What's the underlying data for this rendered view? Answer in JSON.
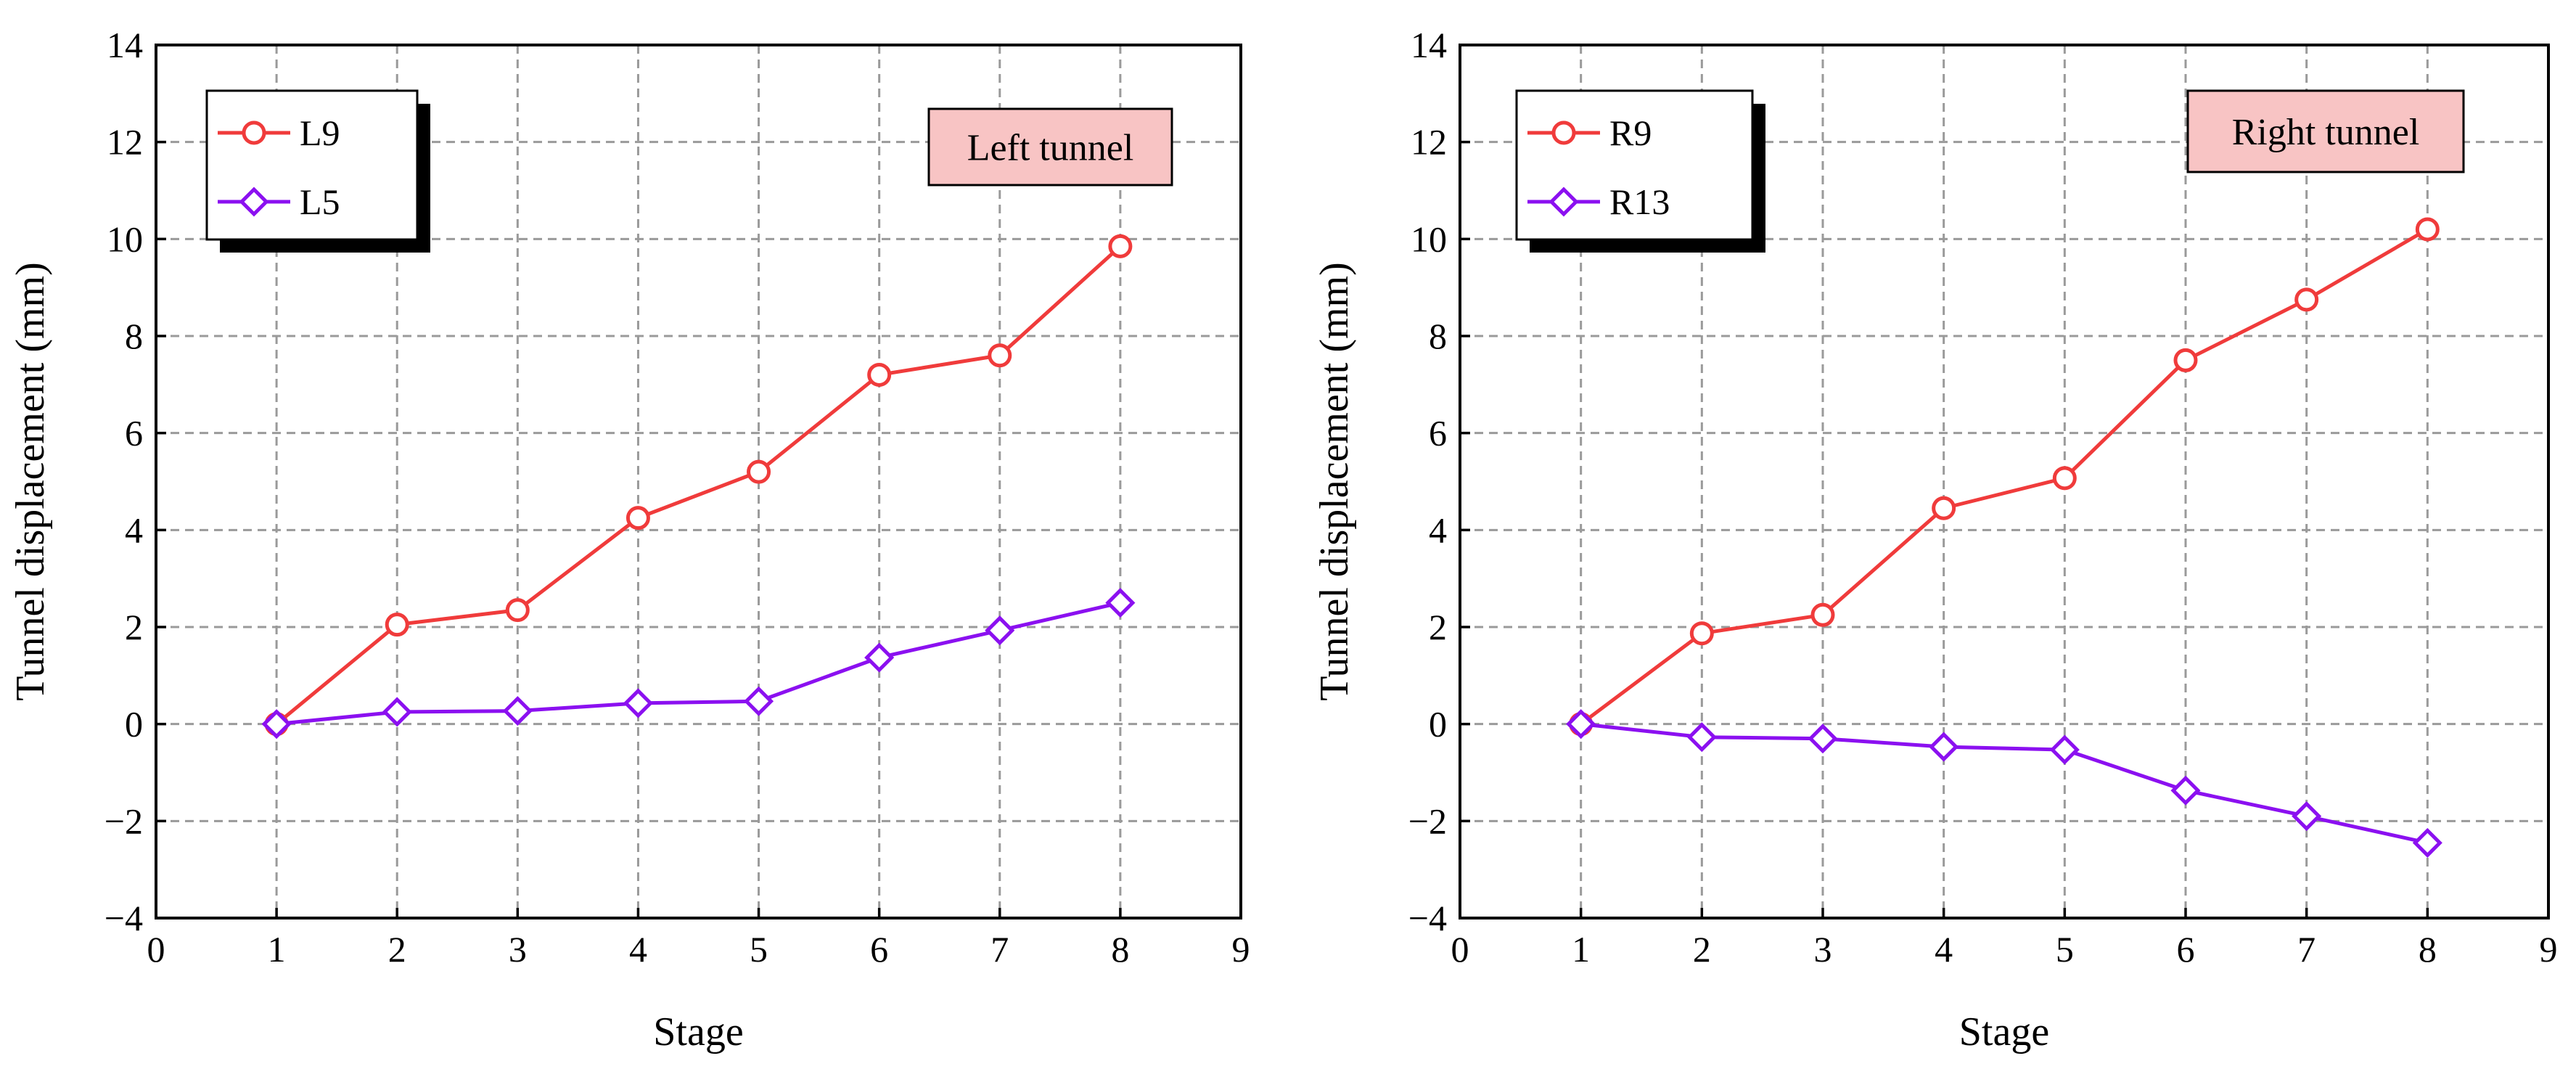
{
  "chart_data": [
    {
      "type": "line",
      "title": "",
      "xlabel": "Stage",
      "ylabel": "Tunnel displacement (mm)",
      "xlim": [
        0,
        9
      ],
      "ylim": [
        -4,
        14
      ],
      "xticks": [
        0,
        1,
        2,
        3,
        4,
        5,
        6,
        7,
        8,
        9
      ],
      "yticks": [
        -4,
        -2,
        0,
        2,
        4,
        6,
        8,
        10,
        12,
        14
      ],
      "x": [
        1,
        2,
        3,
        4,
        5,
        6,
        7,
        8
      ],
      "grid": true,
      "legend_position": "top-left",
      "annotation": "Left tunnel",
      "annotation_color": "#F8C4C4",
      "series": [
        {
          "name": "L9",
          "color": "#F03B3B",
          "marker": "circle",
          "values": [
            0,
            2.05,
            2.35,
            4.25,
            5.2,
            7.2,
            7.6,
            9.85
          ]
        },
        {
          "name": "L5",
          "color": "#8B10F0",
          "marker": "diamond",
          "values": [
            0,
            0.25,
            0.27,
            0.43,
            0.47,
            1.37,
            1.93,
            2.5
          ]
        }
      ]
    },
    {
      "type": "line",
      "title": "",
      "xlabel": "Stage",
      "ylabel": "Tunnel displacement (mm)",
      "xlim": [
        0,
        9
      ],
      "ylim": [
        -4,
        14
      ],
      "xticks": [
        0,
        1,
        2,
        3,
        4,
        5,
        6,
        7,
        8,
        9
      ],
      "yticks": [
        -4,
        -2,
        0,
        2,
        4,
        6,
        8,
        10,
        12,
        14
      ],
      "x": [
        1,
        2,
        3,
        4,
        5,
        6,
        7,
        8
      ],
      "grid": true,
      "legend_position": "top-left",
      "annotation": "Right tunnel",
      "annotation_color": "#F8C4C4",
      "series": [
        {
          "name": "R9",
          "color": "#F03B3B",
          "marker": "circle",
          "values": [
            0,
            1.87,
            2.25,
            4.45,
            5.07,
            7.5,
            8.75,
            10.2
          ]
        },
        {
          "name": "R13",
          "color": "#8B10F0",
          "marker": "diamond",
          "values": [
            0,
            -0.27,
            -0.3,
            -0.47,
            -0.53,
            -1.37,
            -1.9,
            -2.45
          ]
        }
      ]
    }
  ]
}
